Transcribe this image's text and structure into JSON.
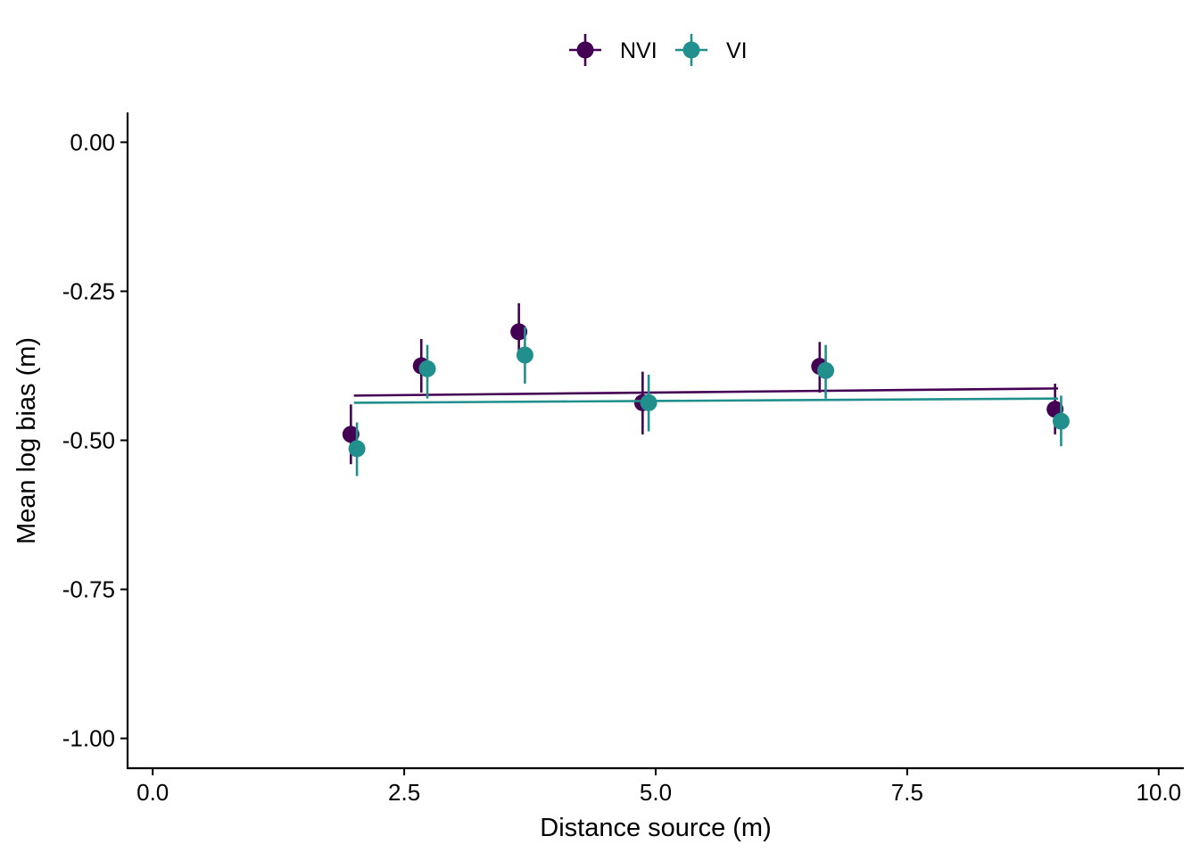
{
  "chart_data": {
    "type": "scatter",
    "title": "",
    "xlabel": "Distance source (m)",
    "ylabel": "Mean log bias (m)",
    "xlim": [
      -0.25,
      10.25
    ],
    "ylim": [
      -1.05,
      0.05
    ],
    "xticks": [
      0.0,
      2.5,
      5.0,
      7.5,
      10.0
    ],
    "xtick_labels": [
      "0.0",
      "2.5",
      "5.0",
      "7.5",
      "10.0"
    ],
    "yticks": [
      0.0,
      -0.25,
      -0.5,
      -0.75,
      -1.0
    ],
    "ytick_labels": [
      "0.00",
      "-0.25",
      "-0.50",
      "-0.75",
      "-1.00"
    ],
    "grid": false,
    "legend_position": "top",
    "series": [
      {
        "name": "NVI",
        "color": "#440154",
        "points": [
          {
            "x": 1.97,
            "y": -0.49,
            "lo": -0.54,
            "hi": -0.44
          },
          {
            "x": 2.67,
            "y": -0.375,
            "lo": -0.42,
            "hi": -0.33
          },
          {
            "x": 3.64,
            "y": -0.318,
            "lo": -0.36,
            "hi": -0.27
          },
          {
            "x": 4.87,
            "y": -0.437,
            "lo": -0.49,
            "hi": -0.385
          },
          {
            "x": 6.63,
            "y": -0.376,
            "lo": -0.42,
            "hi": -0.335
          },
          {
            "x": 8.97,
            "y": -0.448,
            "lo": -0.49,
            "hi": -0.405
          }
        ],
        "trend": {
          "x": [
            2.0,
            9.0
          ],
          "y": [
            -0.425,
            -0.413
          ]
        }
      },
      {
        "name": "VI",
        "color": "#21908C",
        "points": [
          {
            "x": 2.03,
            "y": -0.514,
            "lo": -0.56,
            "hi": -0.47
          },
          {
            "x": 2.73,
            "y": -0.38,
            "lo": -0.43,
            "hi": -0.34
          },
          {
            "x": 3.7,
            "y": -0.357,
            "lo": -0.405,
            "hi": -0.31
          },
          {
            "x": 4.93,
            "y": -0.437,
            "lo": -0.485,
            "hi": -0.39
          },
          {
            "x": 6.69,
            "y": -0.383,
            "lo": -0.43,
            "hi": -0.34
          },
          {
            "x": 9.03,
            "y": -0.468,
            "lo": -0.51,
            "hi": -0.425
          }
        ],
        "trend": {
          "x": [
            2.0,
            9.0
          ],
          "y": [
            -0.437,
            -0.43
          ]
        }
      }
    ]
  }
}
